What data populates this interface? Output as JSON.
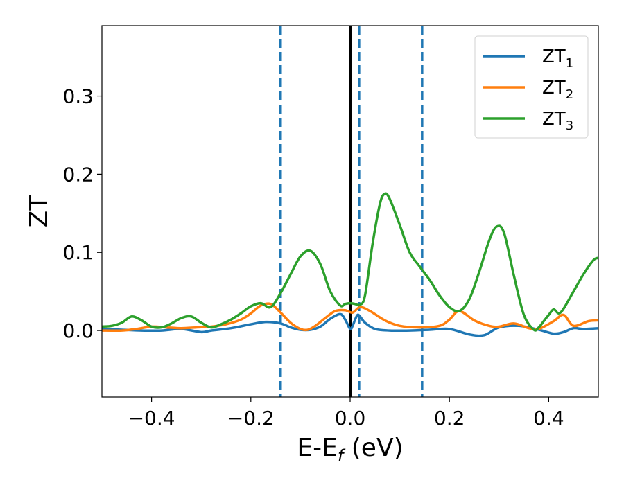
{
  "chart_data": {
    "type": "line",
    "title": "",
    "xlabel": {
      "main": "E-E",
      "sub": "f",
      "unit": " (eV)"
    },
    "ylabel": "ZT",
    "xlim": [
      -0.5,
      0.5
    ],
    "ylim": [
      -0.085,
      0.39
    ],
    "x_ticks": [
      -0.4,
      -0.2,
      0.0,
      0.2,
      0.4
    ],
    "x_tick_labels": [
      "−0.4",
      "−0.2",
      "0.0",
      "0.2",
      "0.4"
    ],
    "y_ticks": [
      0.0,
      0.1,
      0.2,
      0.3
    ],
    "y_tick_labels": [
      "0.0",
      "0.1",
      "0.2",
      "0.3"
    ],
    "grid": false,
    "legend_position": "top-right",
    "vertical_lines": [
      {
        "x": 0.0,
        "color": "#000000",
        "style": "solid"
      },
      {
        "x": -0.14,
        "color": "#1f77b4",
        "style": "dashed"
      },
      {
        "x": 0.018,
        "color": "#1f77b4",
        "style": "dashed"
      },
      {
        "x": 0.145,
        "color": "#1f77b4",
        "style": "dashed"
      }
    ],
    "series": [
      {
        "name": "ZT",
        "subscript": "1",
        "color": "#1f77b4",
        "x": [
          -0.5,
          -0.46,
          -0.42,
          -0.38,
          -0.34,
          -0.3,
          -0.28,
          -0.24,
          -0.2,
          -0.17,
          -0.14,
          -0.12,
          -0.1,
          -0.08,
          -0.06,
          -0.04,
          -0.02,
          -0.01,
          0.0,
          0.005,
          0.01,
          0.015,
          0.02,
          0.03,
          0.05,
          0.08,
          0.12,
          0.16,
          0.2,
          0.24,
          0.27,
          0.3,
          0.34,
          0.38,
          0.41,
          0.43,
          0.45,
          0.47,
          0.5
        ],
        "y": [
          0.002,
          0.001,
          0.0,
          0.0,
          0.002,
          -0.002,
          0.0,
          0.003,
          0.008,
          0.011,
          0.009,
          0.004,
          0.001,
          0.001,
          0.005,
          0.015,
          0.021,
          0.014,
          0.002,
          0.006,
          0.014,
          0.02,
          0.018,
          0.01,
          0.002,
          0.0,
          0.0,
          0.001,
          0.002,
          -0.005,
          -0.006,
          0.004,
          0.006,
          0.001,
          -0.004,
          -0.002,
          0.003,
          0.002,
          0.003
        ]
      },
      {
        "name": "ZT",
        "subscript": "2",
        "color": "#ff7f0e",
        "x": [
          -0.5,
          -0.46,
          -0.43,
          -0.4,
          -0.37,
          -0.34,
          -0.31,
          -0.28,
          -0.25,
          -0.22,
          -0.2,
          -0.18,
          -0.16,
          -0.14,
          -0.12,
          -0.1,
          -0.085,
          -0.07,
          -0.05,
          -0.03,
          -0.01,
          0.005,
          0.02,
          0.04,
          0.07,
          0.1,
          0.14,
          0.18,
          0.2,
          0.22,
          0.25,
          0.28,
          0.3,
          0.33,
          0.36,
          0.38,
          0.41,
          0.43,
          0.45,
          0.48,
          0.5
        ],
        "y": [
          0.0,
          0.0,
          0.002,
          0.005,
          0.004,
          0.003,
          0.004,
          0.005,
          0.008,
          0.014,
          0.022,
          0.032,
          0.034,
          0.023,
          0.01,
          0.002,
          0.001,
          0.006,
          0.016,
          0.025,
          0.026,
          0.023,
          0.03,
          0.025,
          0.013,
          0.006,
          0.004,
          0.006,
          0.014,
          0.025,
          0.013,
          0.006,
          0.005,
          0.009,
          0.003,
          0.002,
          0.012,
          0.02,
          0.006,
          0.012,
          0.013
        ]
      },
      {
        "name": "ZT",
        "subscript": "3",
        "color": "#2ca02c",
        "x": [
          -0.5,
          -0.48,
          -0.46,
          -0.44,
          -0.42,
          -0.4,
          -0.38,
          -0.36,
          -0.34,
          -0.32,
          -0.3,
          -0.28,
          -0.26,
          -0.24,
          -0.22,
          -0.2,
          -0.18,
          -0.16,
          -0.14,
          -0.12,
          -0.1,
          -0.08,
          -0.06,
          -0.04,
          -0.02,
          -0.01,
          0.0,
          0.01,
          0.02,
          0.03,
          0.045,
          0.06,
          0.07,
          0.08,
          0.1,
          0.12,
          0.14,
          0.16,
          0.18,
          0.2,
          0.22,
          0.24,
          0.26,
          0.28,
          0.295,
          0.31,
          0.33,
          0.35,
          0.37,
          0.38,
          0.39,
          0.4,
          0.41,
          0.42,
          0.43,
          0.45,
          0.47,
          0.49,
          0.5
        ],
        "y": [
          0.005,
          0.006,
          0.01,
          0.018,
          0.013,
          0.005,
          0.004,
          0.009,
          0.016,
          0.018,
          0.01,
          0.004,
          0.008,
          0.014,
          0.022,
          0.031,
          0.035,
          0.03,
          0.048,
          0.072,
          0.095,
          0.102,
          0.085,
          0.05,
          0.032,
          0.034,
          0.035,
          0.034,
          0.033,
          0.045,
          0.11,
          0.162,
          0.175,
          0.168,
          0.135,
          0.1,
          0.082,
          0.065,
          0.045,
          0.03,
          0.025,
          0.04,
          0.075,
          0.115,
          0.133,
          0.125,
          0.07,
          0.02,
          0.001,
          0.004,
          0.012,
          0.02,
          0.027,
          0.022,
          0.028,
          0.05,
          0.072,
          0.09,
          0.093
        ]
      }
    ]
  }
}
